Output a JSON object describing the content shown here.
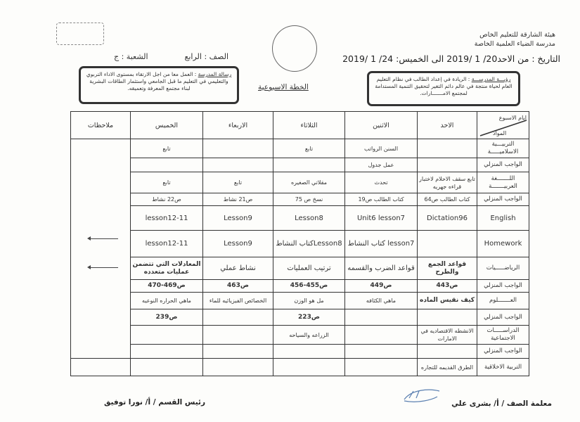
{
  "header": {
    "authority": "هيئة الشارقة للتعليم الخاص",
    "school": "مدرسة الضياء العلمية الخاصة",
    "date_range": "التاريخ : من الاحد20/ 1 /2019  الى الخميس: 24/ 1 /2019",
    "grade": "الصف : الرابع",
    "section": "الشعبة : ج",
    "title": "الخطة الاسبوعية",
    "vision_label": "رؤيـــة المدرســـة",
    "vision_text": ": الريادة في إعداد الطالب في نظام التعليم العام لحياة منتجة في عالم دائم التغير لتحقيق التنمية المستدامة لمجتمع الامـــــــارات.",
    "mission_label": "رسالة المدرسة",
    "mission_text": ": العمل معا من اجل الارتقاء بمستوى الاداء التربوي والتعليمي في التعليم ما قبل الجامعي واستثمار الطاقات البشرية لبناء مجتمع المعرفة وتعميقه."
  },
  "table": {
    "corner_top": "ايام الاسبوع",
    "corner_bottom": "المواد",
    "days": [
      "الاحد",
      "الاثنين",
      "الثلاثاء",
      "الاربعاء",
      "الخميس"
    ],
    "notes_header": "ملاحظات",
    "rows": [
      {
        "subject": "التربيـــية الاسلاميـــــة",
        "cells": [
          "",
          "السنن الرواتب",
          "تابع",
          "",
          "تابع"
        ]
      },
      {
        "subject": "الواجب المنزلي",
        "cells": [
          "",
          "عمل جدول",
          "",
          "",
          ""
        ]
      },
      {
        "subject": "اللـــــــغة العربيـــــــة",
        "cells": [
          "تابع سقف الاحلام لاختبار قراءه جهريه",
          "تحدث",
          "مقلاتي الصغيره",
          "تابع",
          "تابع"
        ]
      },
      {
        "subject": "الواجب المنزلي",
        "cells": [
          "كتاب الطالب ص64",
          "كتاب الطالب ص19",
          "نسخ ص 75",
          "ص21 نشاط",
          "ص22 نشاط"
        ]
      },
      {
        "subject": "English",
        "cells": [
          "Dictation96",
          "Unit6 lesson7",
          "Lesson8",
          "Lesson9",
          "lesson12-11"
        ]
      },
      {
        "subject": "Homework",
        "cells": [
          "",
          "lesson7 كتاب النشاط",
          "Lesson8كتاب النشاط",
          "Lesson9",
          "lesson12-11"
        ]
      },
      {
        "subject": "الرياضـــــيات",
        "cells": [
          "قواعد الجمع والطرح",
          "قواعد الضرب والقسمه",
          "ترتيب العمليات",
          "نشاط عملي",
          "المعادلات التي تتضمن عمليات متعدده"
        ]
      },
      {
        "subject": "الواجب المنزلي",
        "cells": [
          "ص443",
          "ص449",
          "ص455-456",
          "ص463",
          "ص469-470"
        ]
      },
      {
        "subject": "العـــــــلوم",
        "cells": [
          "كيف نقيس الماده",
          "ماهي الكثافه",
          "مل هو الوزن",
          "الخصائص الفيزيائيه للماء",
          "ماهي الحراره النوعيه"
        ]
      },
      {
        "subject": "الواجب المنزلي",
        "cells": [
          "",
          "",
          "ص223",
          "",
          "ص239"
        ]
      },
      {
        "subject": "الدراســـــات الاجتماعية",
        "cells": [
          "الانشطه الاقتصاديه في الامارات",
          "",
          "الزراعه والسياحه",
          "",
          ""
        ]
      },
      {
        "subject": "الواجب المنزلي",
        "cells": [
          "",
          "",
          "",
          "",
          ""
        ]
      },
      {
        "subject": "التربية الاخلاقية",
        "cells": [
          "الطرق القديمه للتجاره",
          "",
          "",
          "",
          ""
        ]
      }
    ]
  },
  "footer": {
    "teacher": "معلمة الصف / أ/ بشرى علي",
    "head": "رئيس القسم / أ/ نورا توفيق"
  }
}
